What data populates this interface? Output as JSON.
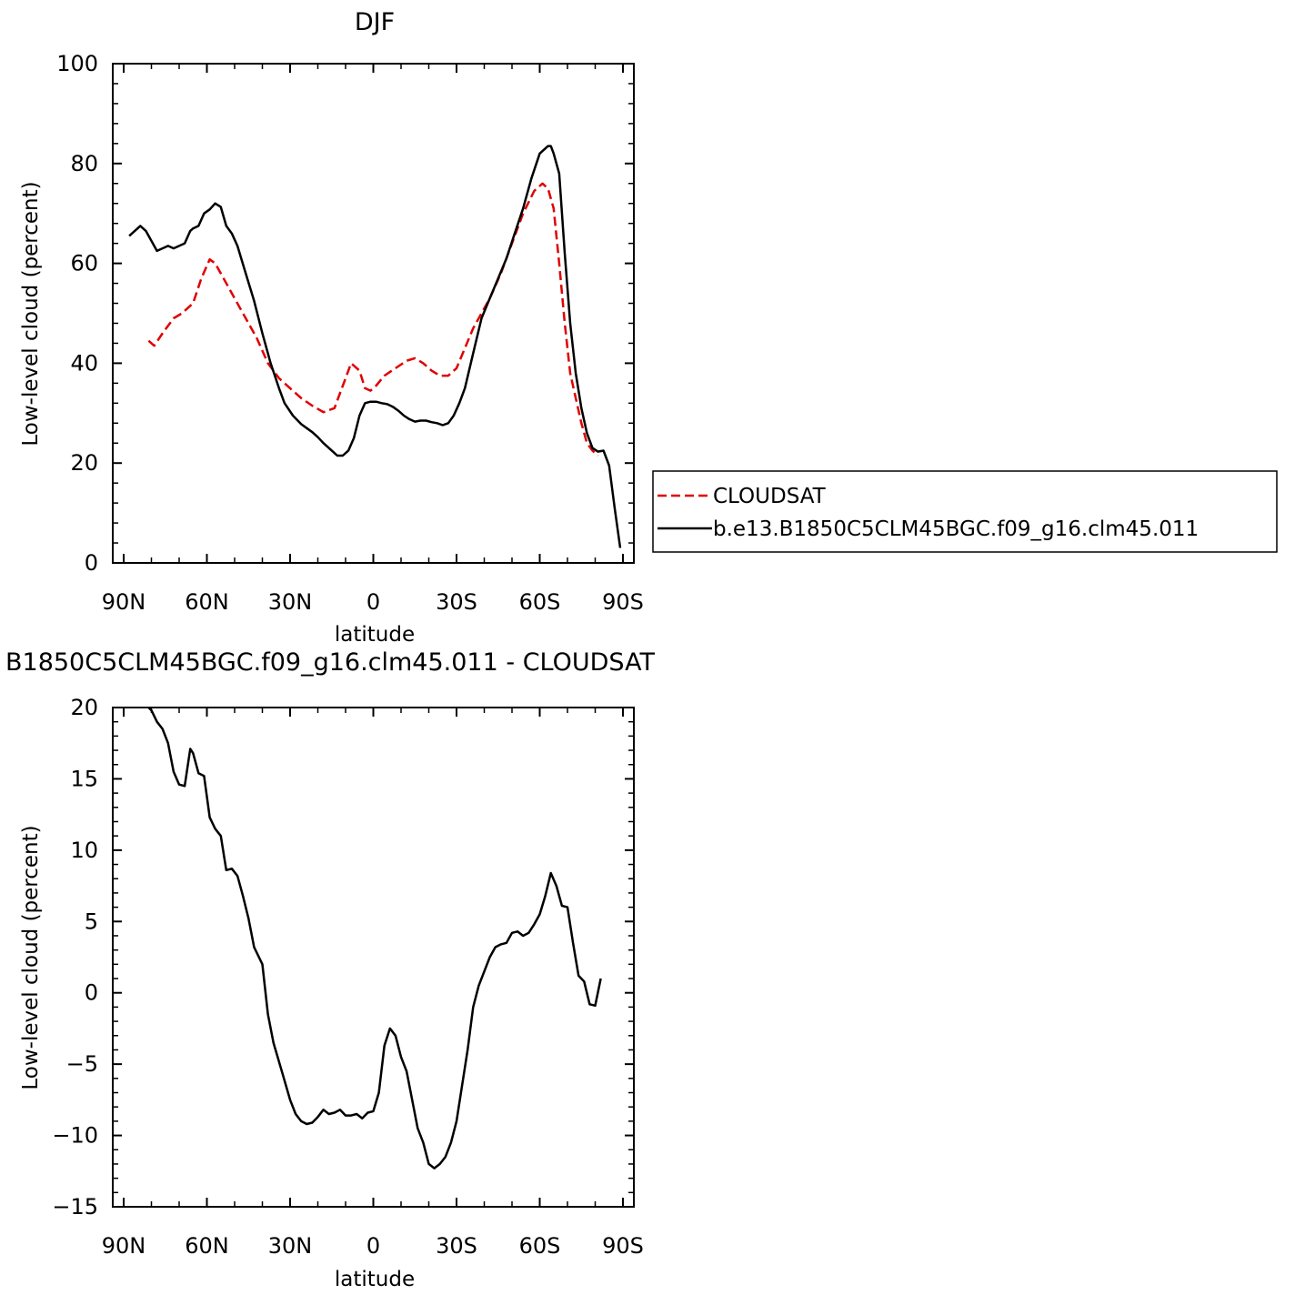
{
  "chart_data": [
    {
      "type": "line",
      "title": "DJF",
      "xlabel": "latitude",
      "ylabel": "Low-level cloud (percent)",
      "xlim": [
        -90,
        90
      ],
      "ylim": [
        0,
        100
      ],
      "x_ticks": [
        -90,
        -60,
        -30,
        0,
        30,
        60,
        90
      ],
      "x_tick_labels": [
        "90N",
        "60N",
        "30N",
        "0",
        "30S",
        "60S",
        "90S"
      ],
      "y_ticks": [
        0,
        20,
        40,
        60,
        80,
        100
      ],
      "y_tick_labels": [
        "0",
        "20",
        "40",
        "60",
        "80",
        "100"
      ],
      "legend_position": "right",
      "series": [
        {
          "name": "CLOUDSAT",
          "color": "#e00000",
          "dash": "dashed",
          "x": [
            -81,
            -79,
            -76,
            -72,
            -69,
            -65,
            -62,
            -59,
            -57,
            -55,
            -51,
            -46,
            -42,
            -38,
            -34,
            -30,
            -26,
            -22,
            -18,
            -14,
            -12,
            -10,
            -8,
            -5,
            -3,
            -1,
            1,
            4,
            8,
            12,
            15,
            18,
            21,
            24,
            27,
            30,
            33,
            36,
            39,
            42,
            46,
            50,
            54,
            58,
            61,
            63,
            65,
            67,
            69,
            71,
            73,
            75,
            77,
            79,
            81
          ],
          "y": [
            44.5,
            43.5,
            46,
            49,
            50,
            52,
            57,
            60.8,
            60,
            58,
            54,
            49,
            45,
            40,
            37,
            35,
            33,
            31.5,
            30.2,
            31,
            34,
            37,
            40,
            38.5,
            35,
            34.5,
            35.5,
            37.5,
            39,
            40.5,
            41,
            40,
            38.5,
            37.5,
            37.5,
            39,
            43,
            47,
            50,
            53,
            58,
            64,
            70,
            74.5,
            76,
            75,
            71,
            60,
            48,
            38,
            33,
            28,
            24,
            22.5,
            21.5
          ]
        },
        {
          "name": "b.e13.B1850C5CLM45BGC.f09_g16.clm45.011",
          "color": "#000000",
          "dash": "solid",
          "x": [
            -88,
            -86,
            -84,
            -82,
            -80,
            -78,
            -76,
            -74,
            -72,
            -70,
            -68,
            -66,
            -65,
            -63,
            -61,
            -59,
            -57,
            -55,
            -53,
            -51,
            -49,
            -46,
            -43,
            -40,
            -37,
            -34,
            -32,
            -29,
            -26,
            -24,
            -22,
            -20,
            -18,
            -16,
            -14,
            -13,
            -11,
            -9,
            -7,
            -5,
            -3,
            -1,
            1,
            3,
            5,
            7,
            9,
            11,
            13,
            15,
            17,
            19,
            21,
            23,
            25,
            27,
            29,
            31,
            33,
            36,
            39,
            42,
            45,
            48,
            51,
            54,
            57,
            60,
            62,
            63,
            64,
            65,
            67,
            69,
            71,
            73,
            75,
            77,
            79,
            81,
            83,
            85,
            87,
            89
          ],
          "y": [
            65.5,
            66.5,
            67.5,
            66.5,
            64.5,
            62.5,
            63,
            63.5,
            63,
            63.5,
            64,
            66.5,
            67,
            67.5,
            70,
            70.8,
            72,
            71.3,
            67.5,
            66,
            63.5,
            58,
            52.5,
            46,
            40,
            35,
            32,
            29.5,
            27.8,
            27,
            26.2,
            25.2,
            24,
            23,
            22,
            21.5,
            21.5,
            22.5,
            25,
            29.5,
            32,
            32.3,
            32.3,
            32,
            31.8,
            31.3,
            30.5,
            29.5,
            28.8,
            28.3,
            28.5,
            28.5,
            28.2,
            28,
            27.6,
            28,
            29.5,
            32,
            35,
            42,
            49,
            53,
            57,
            61,
            66,
            71,
            77,
            82,
            83,
            83.5,
            83.5,
            82,
            78,
            62,
            48,
            38,
            31,
            26,
            23,
            22.3,
            22.5,
            19.5,
            11,
            3
          ]
        }
      ]
    },
    {
      "type": "line",
      "title": "B1850C5CLM45BGC.f09_g16.clm45.011 - CLOUDSAT",
      "xlabel": "latitude",
      "ylabel": "Low-level cloud (percent)",
      "xlim": [
        -90,
        90
      ],
      "ylim": [
        -15,
        20
      ],
      "x_ticks": [
        -90,
        -60,
        -30,
        0,
        30,
        60,
        90
      ],
      "x_tick_labels": [
        "90N",
        "60N",
        "30N",
        "0",
        "30S",
        "60S",
        "90S"
      ],
      "y_ticks": [
        -15,
        -10,
        -5,
        0,
        5,
        10,
        15,
        20
      ],
      "y_tick_labels": [
        "−15",
        "−10",
        "−5",
        "0",
        "5",
        "10",
        "15",
        "20"
      ],
      "series": [
        {
          "color": "#000000",
          "dash": "solid",
          "x": [
            -81,
            -80,
            -78,
            -76,
            -74,
            -72,
            -70,
            -68,
            -66,
            -65,
            -63,
            -61,
            -59,
            -57,
            -55,
            -53,
            -51,
            -49,
            -47,
            -45,
            -43,
            -40,
            -38,
            -36,
            -33,
            -30,
            -28,
            -26,
            -24,
            -22,
            -20,
            -18,
            -16,
            -14,
            -12,
            -10,
            -8,
            -6,
            -4,
            -2,
            0,
            2,
            4,
            6,
            8,
            10,
            12,
            14,
            16,
            18,
            20,
            22,
            24,
            26,
            28,
            30,
            32,
            34,
            36,
            38,
            40,
            42,
            44,
            46,
            48,
            50,
            52,
            54,
            56,
            58,
            60,
            62,
            64,
            66,
            68,
            70,
            72,
            74,
            76,
            78,
            80,
            82
          ],
          "y": [
            20,
            19.8,
            19,
            18.5,
            17.5,
            15.5,
            14.6,
            14.5,
            17.1,
            16.8,
            15.4,
            15.2,
            12.3,
            11.5,
            11,
            8.6,
            8.7,
            8.2,
            6.8,
            5.2,
            3.2,
            2,
            -1.5,
            -3.5,
            -5.5,
            -7.5,
            -8.5,
            -9,
            -9.2,
            -9.1,
            -8.7,
            -8.2,
            -8.5,
            -8.4,
            -8.2,
            -8.6,
            -8.6,
            -8.5,
            -8.8,
            -8.4,
            -8.3,
            -7,
            -3.7,
            -2.5,
            -3,
            -4.5,
            -5.5,
            -7.5,
            -9.5,
            -10.5,
            -12,
            -12.3,
            -12,
            -11.5,
            -10.5,
            -9,
            -6.5,
            -4,
            -1,
            0.5,
            1.5,
            2.5,
            3.2,
            3.4,
            3.5,
            4.2,
            4.3,
            4,
            4.2,
            4.8,
            5.5,
            6.8,
            8.4,
            7.5,
            6.1,
            6,
            3.5,
            1.2,
            0.8,
            -0.8,
            -0.9,
            1
          ]
        }
      ]
    }
  ]
}
